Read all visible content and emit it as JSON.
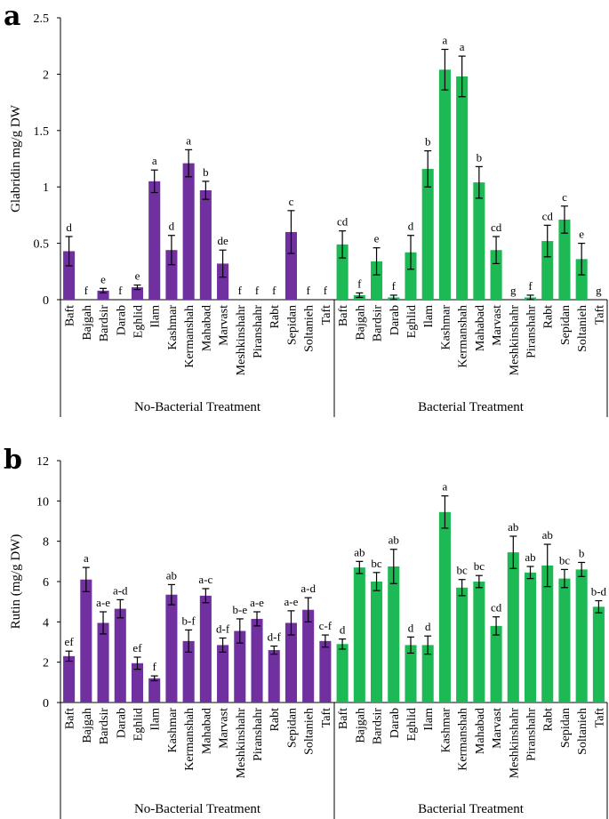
{
  "chart_data": [
    {
      "panel_label": "a",
      "type": "bar",
      "ylabel": "Glabridin mg/g DW",
      "ylim": [
        0,
        2.5
      ],
      "yticks": [
        0,
        0.5,
        1,
        1.5,
        2,
        2.5
      ],
      "ytick_labels": [
        "0",
        "0.5",
        "1",
        "1.5",
        "2",
        "2.5"
      ],
      "groups": [
        {
          "name": "No-Bacterial Treatment",
          "color": "#7030a0",
          "categories": [
            "Baft",
            "Bajgah",
            "Bardsir",
            "Darab",
            "Eghlid",
            "Ilam",
            "Kashmar",
            "Kermanshah",
            "Mahabad",
            "Marvast",
            "Meshkinshahr",
            "Piranshahr",
            "Rabt",
            "Sepidan",
            "Soltanieh",
            "Taft"
          ],
          "values": [
            0.43,
            0,
            0.08,
            0,
            0.11,
            1.05,
            0.44,
            1.21,
            0.97,
            0.32,
            0,
            0,
            0,
            0.6,
            0,
            0
          ],
          "errors": [
            0.13,
            0,
            0.02,
            0,
            0.02,
            0.1,
            0.13,
            0.12,
            0.08,
            0.12,
            0,
            0,
            0,
            0.19,
            0,
            0
          ],
          "letters": [
            "d",
            "f",
            "e",
            "f",
            "e",
            "a",
            "d",
            "a",
            "b",
            "de",
            "f",
            "f",
            "f",
            "c",
            "f",
            "f"
          ]
        },
        {
          "name": "Bacterial Treatment",
          "color": "#1db954",
          "categories": [
            "Baft",
            "Bajgah",
            "Bardsir",
            "Darab",
            "Eghlid",
            "Ilam",
            "Kashmar",
            "Kermanshah",
            "Mahabad",
            "Marvast",
            "Meshkinshahr",
            "Piranshahr",
            "Rabt",
            "Sepidan",
            "Soltanieh",
            "Taft"
          ],
          "values": [
            0.49,
            0.04,
            0.34,
            0.02,
            0.42,
            1.16,
            2.04,
            1.98,
            1.04,
            0.44,
            0,
            0.02,
            0.52,
            0.71,
            0.36,
            0
          ],
          "errors": [
            0.12,
            0.02,
            0.12,
            0.02,
            0.15,
            0.16,
            0.18,
            0.18,
            0.14,
            0.12,
            0,
            0.02,
            0.14,
            0.12,
            0.14,
            0
          ],
          "letters": [
            "cd",
            "f",
            "e",
            "f",
            "d",
            "b",
            "a",
            "a",
            "b",
            "cd",
            "g",
            "f",
            "cd",
            "c",
            "e",
            "g"
          ]
        }
      ]
    },
    {
      "panel_label": "b",
      "type": "bar",
      "ylabel": "Rutin (mg/g DW)",
      "ylim": [
        0,
        12
      ],
      "yticks": [
        0,
        2,
        4,
        6,
        8,
        10,
        12
      ],
      "ytick_labels": [
        "0",
        "2",
        "4",
        "6",
        "8",
        "10",
        "12"
      ],
      "groups": [
        {
          "name": "No-Bacterial Treatment",
          "color": "#7030a0",
          "categories": [
            "Baft",
            "Bajgah",
            "Bardsir",
            "Darab",
            "Eghlid",
            "Ilam",
            "Kashmar",
            "Kermanshah",
            "Mahabad",
            "Marvast",
            "Meshkinshahr",
            "Piranshahr",
            "Rabt",
            "Sepidan",
            "Soltanieh",
            "Taft"
          ],
          "values": [
            2.3,
            6.1,
            3.95,
            4.65,
            1.95,
            1.2,
            5.35,
            3.05,
            5.3,
            2.85,
            3.55,
            4.15,
            2.6,
            3.95,
            4.6,
            3.05
          ],
          "errors": [
            0.25,
            0.6,
            0.55,
            0.45,
            0.3,
            0.12,
            0.5,
            0.55,
            0.35,
            0.35,
            0.6,
            0.35,
            0.2,
            0.6,
            0.6,
            0.3
          ],
          "letters": [
            "ef",
            "a",
            "a-e",
            "a-d",
            "ef",
            "f",
            "ab",
            "b-f",
            "a-c",
            "d-f",
            "b-e",
            "a-e",
            "d-f",
            "a-e",
            "a-d",
            "c-f"
          ]
        },
        {
          "name": "Bacterial Treatment",
          "color": "#1db954",
          "categories": [
            "Baft",
            "Bajgah",
            "Bardsir",
            "Darab",
            "Eghlid",
            "Ilam",
            "Kashmar",
            "Kermanshah",
            "Mahabad",
            "Marvast",
            "Meshkinshahr",
            "Piranshahr",
            "Rabt",
            "Sepidan",
            "Soltanieh",
            "Taft"
          ],
          "values": [
            2.9,
            6.7,
            6.0,
            6.75,
            2.85,
            2.85,
            9.45,
            5.7,
            6.0,
            3.8,
            7.45,
            6.45,
            6.8,
            6.15,
            6.6,
            4.75
          ],
          "errors": [
            0.25,
            0.3,
            0.45,
            0.85,
            0.4,
            0.45,
            0.8,
            0.4,
            0.3,
            0.45,
            0.8,
            0.3,
            1.05,
            0.45,
            0.35,
            0.3
          ],
          "letters": [
            "d",
            "ab",
            "bc",
            "ab",
            "d",
            "d",
            "a",
            "bc",
            "bc",
            "cd",
            "ab",
            "ab",
            "ab",
            "bc",
            "b",
            "b-d"
          ]
        }
      ]
    }
  ]
}
